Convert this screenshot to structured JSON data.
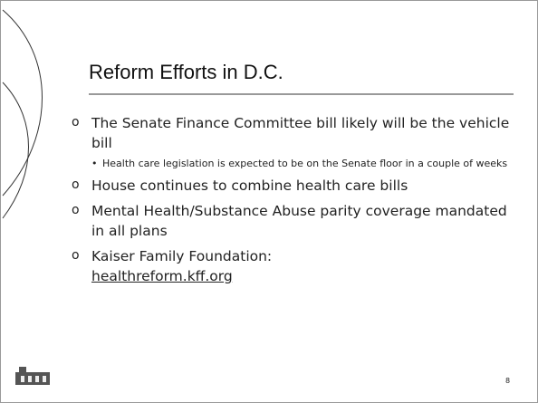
{
  "slide": {
    "title": "Reform Efforts in D.C.",
    "bullets": [
      {
        "text": "The Senate Finance Committee bill likely will be the vehicle bill",
        "sub": [
          "Health care legislation is expected to be on the Senate floor in a couple of weeks"
        ]
      },
      {
        "text": "House continues to combine health care bills"
      },
      {
        "text": "Mental Health/Substance Abuse parity coverage mandated in all plans"
      },
      {
        "text": "Kaiser Family Foundation:",
        "link": "healthreform.kff.org"
      }
    ],
    "page_number": "8"
  }
}
